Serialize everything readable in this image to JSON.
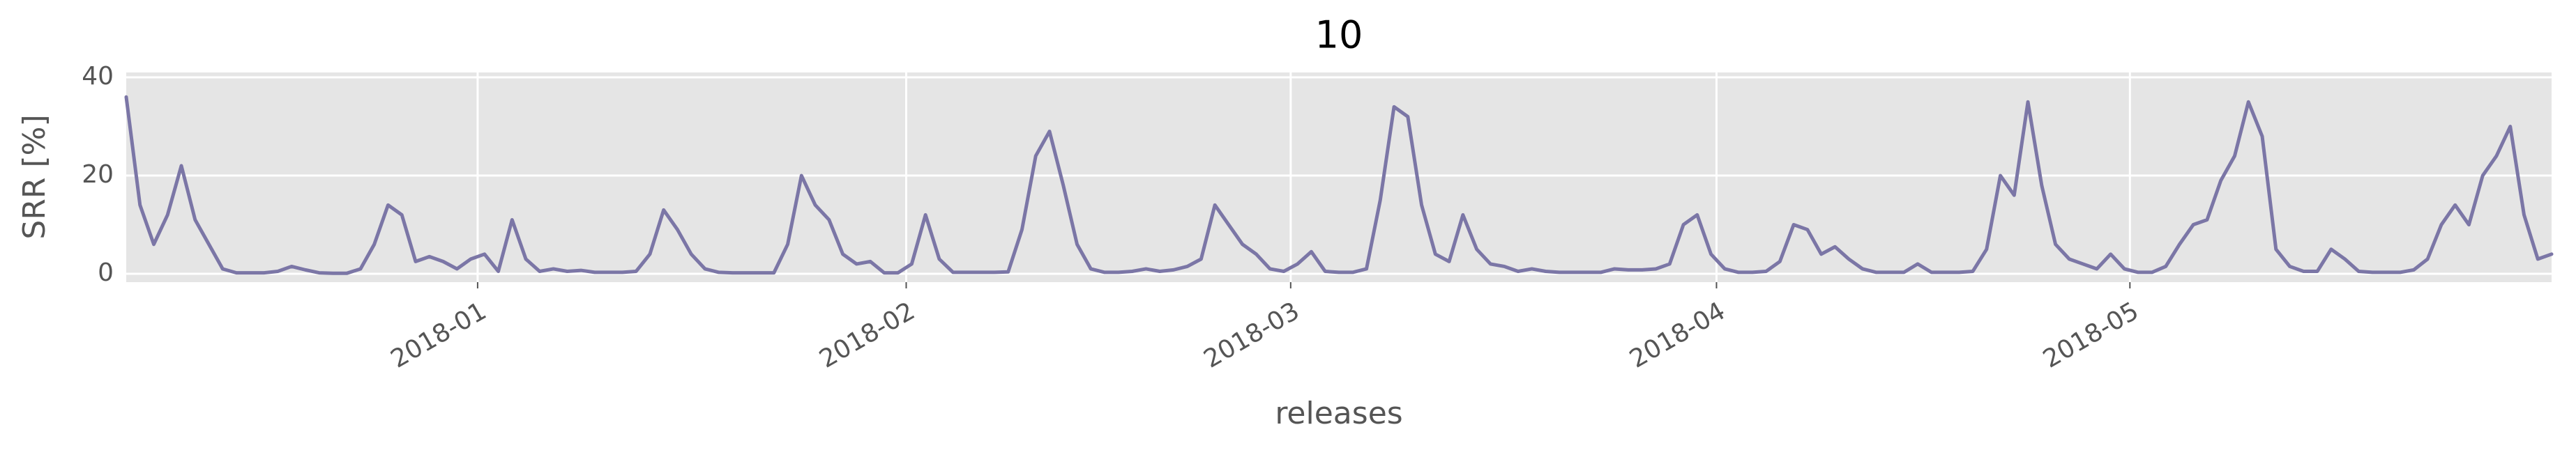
{
  "chart_data": {
    "type": "line",
    "title": "10",
    "x_label": "releases",
    "y_label": "SRR [%]",
    "xlim": [
      0,
      176
    ],
    "xticks": [
      {
        "value": 25.5,
        "label": "2018-01"
      },
      {
        "value": 56.6,
        "label": "2018-02"
      },
      {
        "value": 84.5,
        "label": "2018-03"
      },
      {
        "value": 115.4,
        "label": "2018-04"
      },
      {
        "value": 145.4,
        "label": "2018-05"
      }
    ],
    "ylim": [
      -1.7,
      41
    ],
    "yticks": [
      0,
      20,
      40
    ],
    "grid": true,
    "color": "#7b76a6",
    "values": [
      36,
      14,
      6,
      12,
      22,
      11,
      6,
      1,
      0.2,
      0.2,
      0.2,
      0.5,
      1.5,
      0.8,
      0.2,
      0.1,
      0.1,
      1,
      6,
      14,
      12,
      2.5,
      3.5,
      2.5,
      1,
      3,
      4,
      0.5,
      11,
      3,
      0.5,
      1,
      0.5,
      0.7,
      0.3,
      0.3,
      0.3,
      0.5,
      4,
      13,
      9,
      4,
      1,
      0.3,
      0.2,
      0.2,
      0.2,
      0.2,
      6,
      20,
      14,
      11,
      4,
      2,
      2.5,
      0.2,
      0.2,
      2,
      12,
      3,
      0.3,
      0.3,
      0.3,
      0.3,
      0.4,
      9,
      24,
      29,
      18,
      6,
      1,
      0.3,
      0.3,
      0.5,
      1,
      0.5,
      0.8,
      1.5,
      3,
      14,
      10,
      6,
      4,
      1,
      0.5,
      2,
      4.5,
      0.5,
      0.3,
      0.3,
      1,
      15,
      34,
      32,
      14,
      4,
      2.5,
      12,
      5,
      2,
      1.5,
      0.5,
      1,
      0.5,
      0.3,
      0.3,
      0.3,
      0.3,
      1,
      0.8,
      0.8,
      1,
      2,
      10,
      12,
      4,
      1,
      0.3,
      0.3,
      0.5,
      2.5,
      10,
      9,
      4,
      5.5,
      3,
      1,
      0.3,
      0.3,
      0.3,
      2,
      0.3,
      0.3,
      0.3,
      0.5,
      5,
      20,
      16,
      35,
      18,
      6,
      3,
      2,
      1,
      4,
      1,
      0.3,
      0.3,
      1.5,
      6,
      10,
      11,
      19,
      24,
      35,
      28,
      5,
      1.5,
      0.5,
      0.5,
      5,
      3,
      0.5,
      0.3,
      0.3,
      0.3,
      0.8,
      3,
      10,
      14,
      10,
      20,
      24,
      30,
      12,
      3,
      4
    ]
  }
}
